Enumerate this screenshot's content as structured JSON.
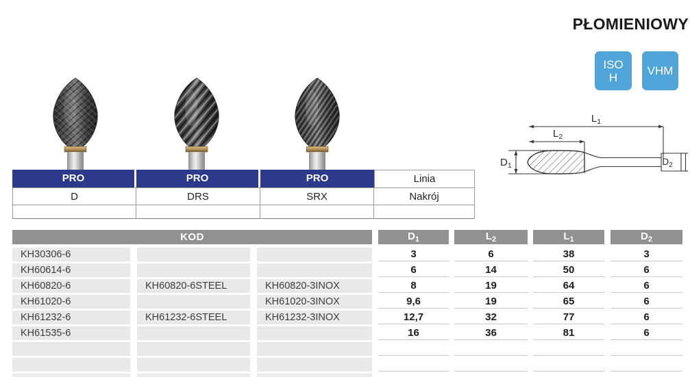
{
  "title": "PŁOMIENIOWY",
  "badges": {
    "iso": {
      "line1": "ISO",
      "line2": "H"
    },
    "vhm": {
      "label": "VHM"
    }
  },
  "colors": {
    "navy": "#2b3a8a",
    "badge_blue": "#4fa5d8",
    "header_gray": "#919191",
    "row_gray": "#e9e9e9"
  },
  "images": [
    {
      "name": "burr-double-cut-photo"
    },
    {
      "name": "burr-steel-cut-photo"
    },
    {
      "name": "burr-inox-cut-photo"
    }
  ],
  "diagram": {
    "labels": {
      "l1": {
        "main": "L",
        "sub": "1"
      },
      "l2": {
        "main": "L",
        "sub": "2"
      },
      "d1": {
        "main": "D",
        "sub": "1"
      },
      "d2": {
        "main": "D",
        "sub": "2"
      }
    }
  },
  "pro_table": {
    "headers": [
      "PRO",
      "PRO",
      "PRO",
      "Linia"
    ],
    "variants": [
      "D",
      "DRS",
      "SRX",
      "Nakrój"
    ]
  },
  "main_table": {
    "kod_header": "KOD",
    "dim_headers": [
      {
        "main": "D",
        "sub": "1"
      },
      {
        "main": "L",
        "sub": "2"
      },
      {
        "main": "L",
        "sub": "1"
      },
      {
        "main": "D",
        "sub": "2"
      }
    ],
    "rows": [
      {
        "codes": [
          "KH30306-6",
          "",
          ""
        ],
        "values": [
          "3",
          "6",
          "38",
          "3"
        ]
      },
      {
        "codes": [
          "KH60614-6",
          "",
          ""
        ],
        "values": [
          "6",
          "14",
          "50",
          "6"
        ]
      },
      {
        "codes": [
          "KH60820-6",
          "KH60820-6STEEL",
          "KH60820-3INOX"
        ],
        "values": [
          "8",
          "19",
          "64",
          "6"
        ]
      },
      {
        "codes": [
          "KH61020-6",
          "",
          "KH61020-3INOX"
        ],
        "values": [
          "9,6",
          "19",
          "65",
          "6"
        ]
      },
      {
        "codes": [
          "KH61232-6",
          "KH61232-6STEEL",
          "KH61232-3INOX"
        ],
        "values": [
          "12,7",
          "32",
          "77",
          "6"
        ]
      },
      {
        "codes": [
          "KH61535-6",
          "",
          ""
        ],
        "values": [
          "16",
          "36",
          "81",
          "6"
        ]
      },
      {
        "codes": [
          "",
          "",
          ""
        ],
        "values": [
          "",
          "",
          "",
          ""
        ]
      },
      {
        "codes": [
          "",
          "",
          ""
        ],
        "values": [
          "",
          "",
          "",
          ""
        ]
      },
      {
        "codes": [
          "",
          "",
          ""
        ],
        "values": [
          "",
          "",
          "",
          ""
        ]
      }
    ]
  }
}
